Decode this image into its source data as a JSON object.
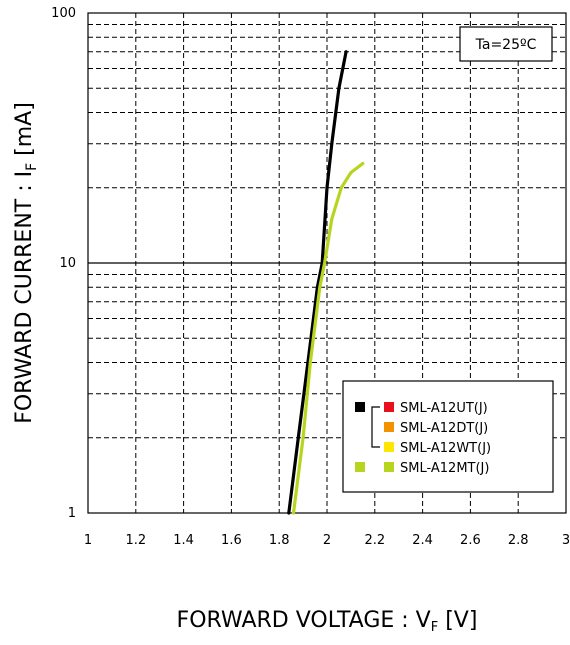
{
  "chart_data": {
    "type": "line",
    "x_label_text": "FORWARD VOLTAGE : V",
    "x_label_sub": "F",
    "x_label_unit": " [V]",
    "y_label_text": "FORWARD CURRENT : I",
    "y_label_sub": "F",
    "y_label_unit": " [mA]",
    "xlim": [
      1,
      3
    ],
    "ylim": [
      1,
      100
    ],
    "y_scale": "log",
    "x_ticks": [
      "1",
      "1.2",
      "1.4",
      "1.6",
      "1.8",
      "2",
      "2.2",
      "2.4",
      "2.6",
      "2.8",
      "3"
    ],
    "y_ticks": [
      "1",
      "10",
      "100"
    ],
    "grid": true,
    "annotation": "Ta=25ºC",
    "legend_position": "lower-right",
    "legend": [
      {
        "label": "SML-A12UT(J)",
        "color": "#e8101c",
        "group_color": "#000000"
      },
      {
        "label": "SML-A12DT(J)",
        "color": "#f39200",
        "group_color": "#000000"
      },
      {
        "label": "SML-A12WT(J)",
        "color": "#ffe600",
        "group_color": "#000000"
      },
      {
        "label": "SML-A12MT(J)",
        "color": "#b8d41e",
        "group_color": "#b8d41e"
      }
    ],
    "series": [
      {
        "color": "#000000",
        "points": [
          [
            1.84,
            1
          ],
          [
            1.88,
            2
          ],
          [
            1.92,
            4
          ],
          [
            1.96,
            8
          ],
          [
            1.98,
            10
          ],
          [
            2.0,
            20
          ],
          [
            2.02,
            30
          ],
          [
            2.05,
            50
          ],
          [
            2.08,
            70
          ]
        ]
      },
      {
        "color": "#b8d41e",
        "points": [
          [
            1.86,
            1
          ],
          [
            1.9,
            2
          ],
          [
            1.93,
            4
          ],
          [
            1.97,
            8
          ],
          [
            1.99,
            10
          ],
          [
            2.02,
            15
          ],
          [
            2.06,
            20
          ],
          [
            2.1,
            23
          ],
          [
            2.15,
            25
          ]
        ]
      }
    ]
  }
}
